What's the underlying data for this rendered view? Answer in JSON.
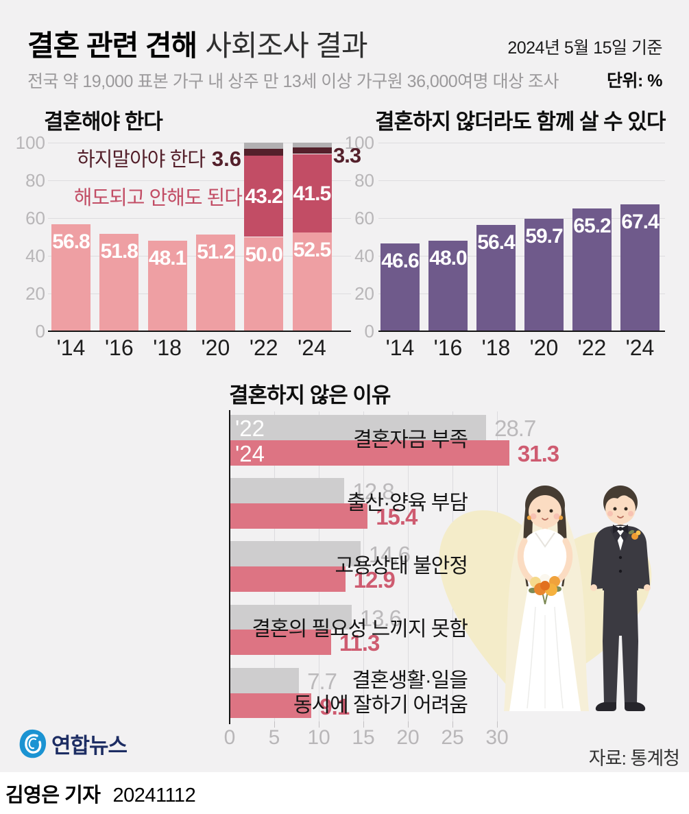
{
  "header": {
    "title_bold": "결혼 관련 견해",
    "title_light": "사회조사 결과",
    "date_note": "2024년 5월 15일 기준",
    "subtitle": "전국 약 19,000 표본 가구 내 상주 만 13세 이상 가구원 36,000여명 대상 조사",
    "unit_note": "단위: %"
  },
  "footer": {
    "source": "자료: 통계청",
    "publisher": "연합뉴스",
    "byline": "김영은 기자",
    "credit_number": "20241112"
  },
  "chart_data": [
    {
      "id": "should-marry",
      "type": "bar",
      "title": "결혼해야 한다",
      "categories": [
        "'14",
        "'16",
        "'18",
        "'20",
        "'22",
        "'24"
      ],
      "ylim": [
        0,
        100
      ],
      "yticks": [
        0,
        20,
        40,
        60,
        80,
        100
      ],
      "grid": true,
      "legend_position": "none",
      "series": [
        {
          "name": "결혼해야 한다",
          "values": [
            56.8,
            51.8,
            48.1,
            51.2,
            50.0,
            52.5
          ],
          "color": "#ee9fa3"
        },
        {
          "name": "해도되고 안해도 된다",
          "values": [
            null,
            null,
            null,
            null,
            43.2,
            41.5
          ],
          "color": "#c24d65"
        },
        {
          "name": "하지말아야 한다",
          "values": [
            null,
            null,
            null,
            null,
            3.6,
            3.3
          ],
          "color": "#54202b"
        },
        {
          "name": "unlabeled-remainder",
          "values": [
            null,
            null,
            null,
            null,
            3.2,
            2.7
          ],
          "color": "#b2b0b2"
        }
      ],
      "annotations": [
        {
          "label": "하지말아야 한다",
          "value": "3.6",
          "color": "#54202b"
        },
        {
          "label": "해도되고 안해도 된다",
          "color": "#c24d65"
        },
        {
          "value": "3.3",
          "color": "#54202b"
        }
      ]
    },
    {
      "id": "cohabit-without-marriage",
      "type": "bar",
      "title": "결혼하지 않더라도 함께 살 수 있다",
      "categories": [
        "'14",
        "'16",
        "'18",
        "'20",
        "'22",
        "'24"
      ],
      "ylim": [
        0,
        100
      ],
      "yticks": [
        0,
        20,
        40,
        60,
        80,
        100
      ],
      "grid": true,
      "legend_position": "none",
      "series": [
        {
          "name": "결혼하지 않더라도 함께 살 수 있다",
          "values": [
            46.6,
            48.0,
            56.4,
            59.7,
            65.2,
            67.4
          ],
          "color": "#6f5a8b"
        }
      ]
    },
    {
      "id": "reasons-not-marry",
      "type": "bar-horizontal-grouped",
      "title": "결혼하지 않은 이유",
      "categories": [
        "결혼자금 부족",
        "출산·양육 부담",
        "고용상태 불안정",
        "결혼의 필요성 느끼지 못함",
        "결혼생활·일을\n동시에 잘하기 어려움"
      ],
      "xlim": [
        0,
        30
      ],
      "xticks": [
        0,
        5,
        10,
        15,
        20,
        25,
        30
      ],
      "grid": true,
      "series": [
        {
          "name": "'22",
          "values": [
            28.7,
            12.8,
            14.6,
            13.6,
            7.7
          ],
          "color": "#cecdce",
          "label_color": "#bbb9bb"
        },
        {
          "name": "'24",
          "values": [
            31.3,
            15.4,
            12.9,
            11.3,
            9.1
          ],
          "color": "#dd7483",
          "label_color": "#ce5b70"
        }
      ]
    }
  ]
}
